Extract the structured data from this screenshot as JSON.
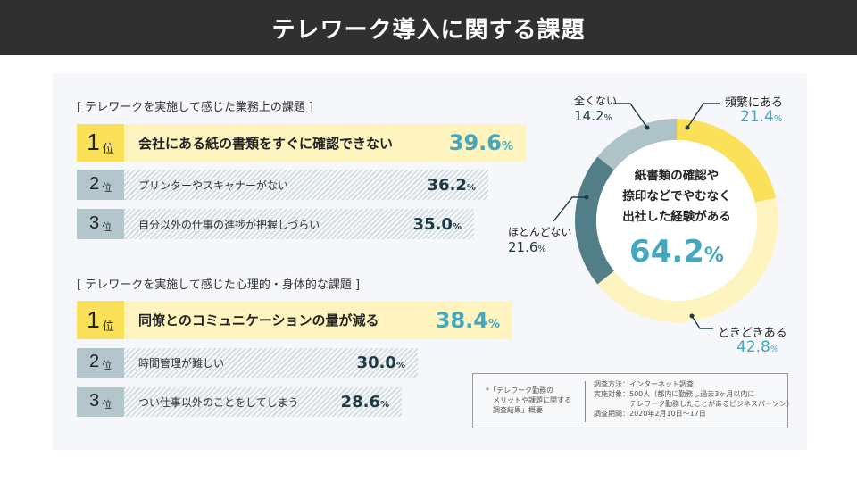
{
  "header": {
    "title": "テレワーク導入に関する課題"
  },
  "sections": [
    {
      "title": "[ テレワークを実施して感じた業務上の課題 ]",
      "items": [
        {
          "rank": "1",
          "rank_suffix": "位",
          "label": "会社にある紙の書類をすぐに確認できない",
          "value": "39.6",
          "unit": "%"
        },
        {
          "rank": "2",
          "rank_suffix": "位",
          "label": "プリンターやスキャナーがない",
          "value": "36.2",
          "unit": "%"
        },
        {
          "rank": "3",
          "rank_suffix": "位",
          "label": "自分以外の仕事の進捗が把握しづらい",
          "value": "35.0",
          "unit": "%"
        }
      ]
    },
    {
      "title": "[ テレワークを実施して感じた心理的・身体的な課題 ]",
      "items": [
        {
          "rank": "1",
          "rank_suffix": "位",
          "label": "同僚とのコミュニケーションの量が減る",
          "value": "38.4",
          "unit": "%"
        },
        {
          "rank": "2",
          "rank_suffix": "位",
          "label": "時間管理が難しい",
          "value": "30.0",
          "unit": "%"
        },
        {
          "rank": "3",
          "rank_suffix": "位",
          "label": "つい仕事以外のことをしてしまう",
          "value": "28.6",
          "unit": "%"
        }
      ]
    }
  ],
  "donut": {
    "center_lines": [
      "紙書類の確認や",
      "捺印などでやむなく",
      "出社した経験がある"
    ],
    "center_value": "64.2",
    "center_unit": "%"
  },
  "footnote": {
    "left": [
      "*「テレワーク勤務の",
      "　メリットや課題に関する",
      "　調査結果」概要"
    ],
    "right": [
      "調査方法：インターネット調査",
      "実施対象：500人（都内に勤務し過去3ヶ月以内に",
      "　　　　　テレワーク勤務したことがあるビジネスパーソン）",
      "調査期間：2020年2月10日〜17日"
    ]
  },
  "chart_data": [
    {
      "type": "bar",
      "title": "テレワークを実施して感じた業務上の課題",
      "categories": [
        "会社にある紙の書類をすぐに確認できない",
        "プリンターやスキャナーがない",
        "自分以外の仕事の進捗が把握しづらい"
      ],
      "values": [
        39.6,
        36.2,
        35.0
      ],
      "unit": "%"
    },
    {
      "type": "bar",
      "title": "テレワークを実施して感じた心理的・身体的な課題",
      "categories": [
        "同僚とのコミュニケーションの量が減る",
        "時間管理が難しい",
        "つい仕事以外のことをしてしまう"
      ],
      "values": [
        38.4,
        30.0,
        28.6
      ],
      "unit": "%"
    },
    {
      "type": "pie",
      "title": "紙書類の確認や捺印などでやむなく出社した経験がある 64.2%",
      "categories": [
        "頻繁にある",
        "ときどきある",
        "ほとんどない",
        "全くない"
      ],
      "values": [
        21.4,
        42.8,
        21.6,
        14.2
      ],
      "colors": [
        "#fbe05a",
        "#fdf4c0",
        "#527f87",
        "#aec3c8"
      ],
      "unit": "%"
    }
  ]
}
